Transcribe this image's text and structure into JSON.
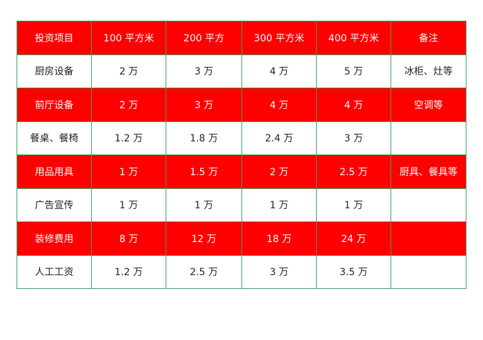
{
  "table": {
    "header": [
      "投资项目",
      "100 平方米",
      "200 平方",
      "300 平方米",
      "400 平方米",
      "备注"
    ],
    "rows": [
      [
        "厨房设备",
        "2 万",
        "3 万",
        "4 万",
        "5 万",
        "冰柜、灶等"
      ],
      [
        "前厅设备",
        "2 万",
        "3 万",
        "4 万",
        "4 万",
        "空调等"
      ],
      [
        "餐桌、餐椅",
        "1.2 万",
        "1.8 万",
        "2.4 万",
        "3 万",
        null
      ],
      [
        "用品用具",
        "1 万",
        "1.5 万",
        "2 万",
        "2.5 万",
        "厨具、餐具等"
      ],
      [
        "广告宣传",
        "1 万",
        "1 万",
        "1 万",
        "1 万",
        null
      ],
      [
        "装修费用",
        "8 万",
        "12 万",
        "18 万",
        "24 万",
        null
      ],
      [
        "人工工资",
        "1.2 万",
        "2.5 万",
        "3 万",
        "3.5 万",
        null
      ]
    ]
  }
}
